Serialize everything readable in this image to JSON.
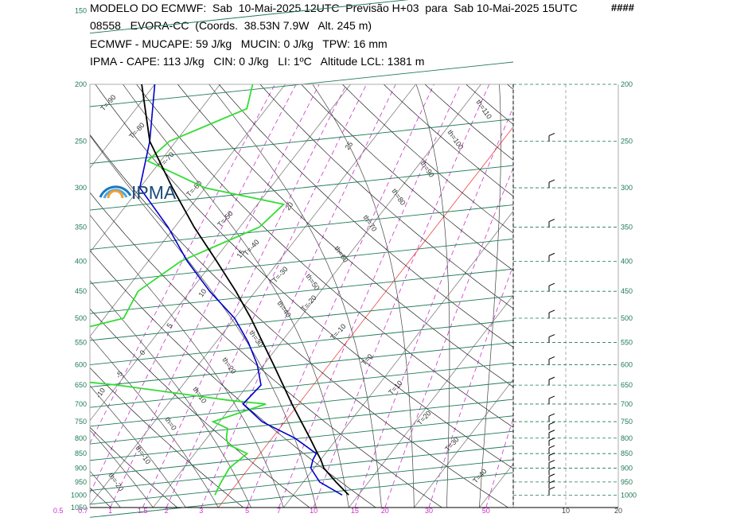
{
  "header": {
    "line1": "MODELO DO ECMWF:  Sab  10-Mai-2025 12UTC  Previsão H+03  para  Sab 10-Mai-2025 15UTC",
    "hashes": "####",
    "line2": "08558   EVORA-CC  (Coords.  38.53N 7.9W   Alt. 245 m)",
    "line3": "ECMWF - MUCAPE: 59 J/kg   MUCIN: 0 J/kg   TPW: 16 mm",
    "line4": "IPMA - CAPE: 113 J/kg   CIN: 0 J/kg   LI: 1ºC   Altitude LCL: 1381 m"
  },
  "logo": {
    "text": "IPMA",
    "colors": [
      "#1a78c2",
      "#4aa9de",
      "#f0a030"
    ]
  },
  "colors": {
    "isobar": "#1f7a55",
    "isotherm": "#808080",
    "dry_adiabat": "#000000",
    "moist_adiabat": "#444444",
    "mixing_ratio": "#cc33cc",
    "temperature": "#000000",
    "dewpoint": "#0000cc",
    "humidity_profile": "#33dd33",
    "zero_isotherm": "#ee4444"
  },
  "chart_data": {
    "type": "line",
    "title": "",
    "ylim": [
      1050,
      200
    ],
    "pressure_ticks_left": [
      "150",
      "200",
      "250",
      "300",
      "350",
      "400",
      "450",
      "500",
      "550",
      "600",
      "650",
      "700",
      "750",
      "800",
      "850",
      "900",
      "950",
      "1000",
      "1050"
    ],
    "pressure_ticks_right": [
      "200",
      "250",
      "300",
      "350",
      "400",
      "450",
      "500",
      "550",
      "600",
      "650",
      "700",
      "750",
      "800",
      "850",
      "900",
      "950",
      "1000"
    ],
    "mixing_ratio_ticks": [
      "0.5",
      "0.7",
      "1",
      "1.5",
      "2",
      "3",
      "5",
      "7",
      "10",
      "15",
      "20",
      "30",
      "50"
    ],
    "wind_axis_ticks": [
      "10",
      "20"
    ],
    "isotherm_labels": [
      "T=-90",
      "T=-80",
      "T=-70",
      "T=-60",
      "T=-50",
      "T=-40",
      "T=-30",
      "T=-20",
      "T=-10",
      "T=0",
      "T=10",
      "T=20",
      "T=30",
      "T=40"
    ],
    "theta_labels": [
      "th=110",
      "th=100",
      "th=90",
      "th=80",
      "th=70",
      "th=60",
      "th=50",
      "th=40",
      "th=30",
      "th=20",
      "th=10",
      "th=0",
      "th=-10",
      "th=-20"
    ],
    "theta_w_labels": [
      "25",
      "20",
      "15",
      "10",
      "5",
      "0",
      "-5",
      "-10"
    ],
    "series": [
      {
        "pressure": [
          1000,
          950,
          900,
          870,
          850,
          800,
          700,
          600,
          500,
          450,
          400,
          350,
          300,
          250,
          200,
          150
        ],
        "temperature": [
          18.5,
          15,
          11.5,
          10,
          8.8,
          5.8,
          -1,
          -8.5,
          -17.5,
          -23,
          -29.5,
          -37,
          -45,
          -54,
          -62,
          -70
        ]
      },
      {
        "pressure": [
          1000,
          950,
          900,
          870,
          850,
          800,
          750,
          700,
          650,
          600,
          550,
          500,
          450,
          400,
          350,
          300,
          250,
          200
        ],
        "dewpoint": [
          17.5,
          12.5,
          9.5,
          8.8,
          8.6,
          3.5,
          -3.5,
          -8.5,
          -8,
          -11,
          -15,
          -20,
          -27,
          -34,
          -41,
          -50,
          -54,
          -60
        ]
      },
      {
        "pressure": [
          1000,
          960,
          900,
          850,
          820,
          800,
          770,
          750,
          700,
          690,
          650,
          620,
          600,
          570,
          550,
          500,
          450,
          400,
          350,
          320,
          300,
          270,
          250,
          220,
          200,
          150
        ],
        "humidity_profile": [
          -2,
          -2.5,
          -3,
          -2,
          -6,
          -7,
          -8,
          -11,
          -5,
          -11,
          -30,
          -50,
          -60,
          -52,
          -49,
          -37,
          -38,
          -35,
          -27,
          -26,
          -40,
          -52,
          -51,
          -43,
          -45,
          -55
        ]
      }
    ],
    "wind_barbs_pressure": [
      1000,
      975,
      950,
      925,
      900,
      875,
      850,
      825,
      800,
      775,
      750,
      700,
      650,
      600,
      550,
      500,
      450,
      400,
      350,
      300,
      250,
      200
    ]
  }
}
